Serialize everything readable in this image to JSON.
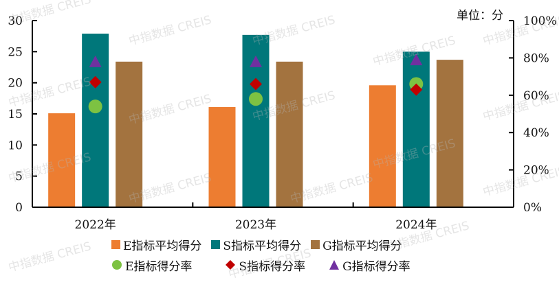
{
  "chart_data": {
    "type": "bar",
    "title": "",
    "unit_label": "单位：分",
    "categories": [
      "2022年",
      "2023年",
      "2024年"
    ],
    "left_axis": {
      "min": 0,
      "max": 30,
      "ticks": [
        "0",
        "5",
        "10",
        "15",
        "20",
        "25",
        "30"
      ]
    },
    "right_axis": {
      "min": 0,
      "max": 100,
      "ticks": [
        "0%",
        "20%",
        "40%",
        "60%",
        "80%",
        "100%"
      ]
    },
    "series": [
      {
        "name": "E指标平均得分",
        "kind": "bar",
        "axis": "left",
        "color": "#ED7D31",
        "values": [
          15.1,
          16.1,
          19.6
        ]
      },
      {
        "name": "S指标平均得分",
        "kind": "bar",
        "axis": "left",
        "color": "#00777A",
        "values": [
          27.9,
          27.7,
          25.0
        ]
      },
      {
        "name": "G指标平均得分",
        "kind": "bar",
        "axis": "left",
        "color": "#A3733F",
        "values": [
          23.4,
          23.4,
          23.7
        ]
      },
      {
        "name": "E指标得分率",
        "kind": "marker",
        "marker": "circle",
        "axis": "right",
        "color": "#7DC242",
        "values": [
          54,
          58,
          66
        ]
      },
      {
        "name": "S指标得分率",
        "kind": "marker",
        "marker": "diamond",
        "axis": "right",
        "color": "#C00000",
        "values": [
          67,
          66,
          63
        ]
      },
      {
        "name": "G指标得分率",
        "kind": "marker",
        "marker": "triangle",
        "axis": "right",
        "color": "#7030A0",
        "values": [
          78,
          78,
          79
        ]
      }
    ],
    "legend_position": "bottom",
    "grid": false
  },
  "watermark": "中指数据 CREIS"
}
